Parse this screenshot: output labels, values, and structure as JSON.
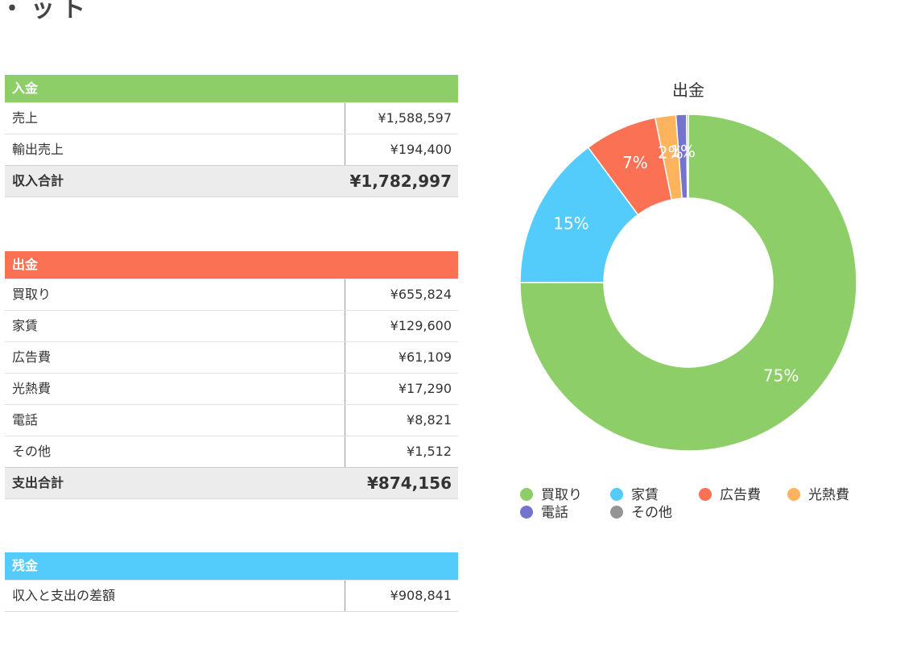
{
  "top_partial_text": "・ット",
  "income": {
    "header": "入金",
    "header_color": "#8dce68",
    "rows": [
      {
        "label": "売上",
        "value": "¥1,588,597"
      },
      {
        "label": "輸出売上",
        "value": "¥194,400"
      }
    ],
    "total": {
      "label": "収入合計",
      "value": "¥1,782,997"
    }
  },
  "expense": {
    "header": "出金",
    "header_color": "#fb7154",
    "rows": [
      {
        "label": "買取り",
        "value": "¥655,824"
      },
      {
        "label": "家賃",
        "value": "¥129,600"
      },
      {
        "label": "広告費",
        "value": "¥61,109"
      },
      {
        "label": "光熱費",
        "value": "¥17,290"
      },
      {
        "label": "電話",
        "value": "¥8,821"
      },
      {
        "label": "その他",
        "value": "¥1,512"
      }
    ],
    "total": {
      "label": "支出合計",
      "value": "¥874,156"
    }
  },
  "balance": {
    "header": "残金",
    "header_color": "#54ccfb",
    "rows": [
      {
        "label": "収入と支出の差額",
        "value": "¥908,841"
      }
    ]
  },
  "chart_data": {
    "type": "pie",
    "title": "出金",
    "categories": [
      "買取り",
      "家賃",
      "広告費",
      "光熱費",
      "電話",
      "その他"
    ],
    "values": [
      655824,
      129600,
      61109,
      17290,
      8821,
      1512
    ],
    "data_labels": [
      "75%",
      "15%",
      "7%",
      "2%",
      "1%",
      ""
    ],
    "colors": [
      "#8dce68",
      "#54ccfb",
      "#fb7154",
      "#fdb45c",
      "#7574cd",
      "#949494"
    ],
    "legend_position": "bottom"
  }
}
